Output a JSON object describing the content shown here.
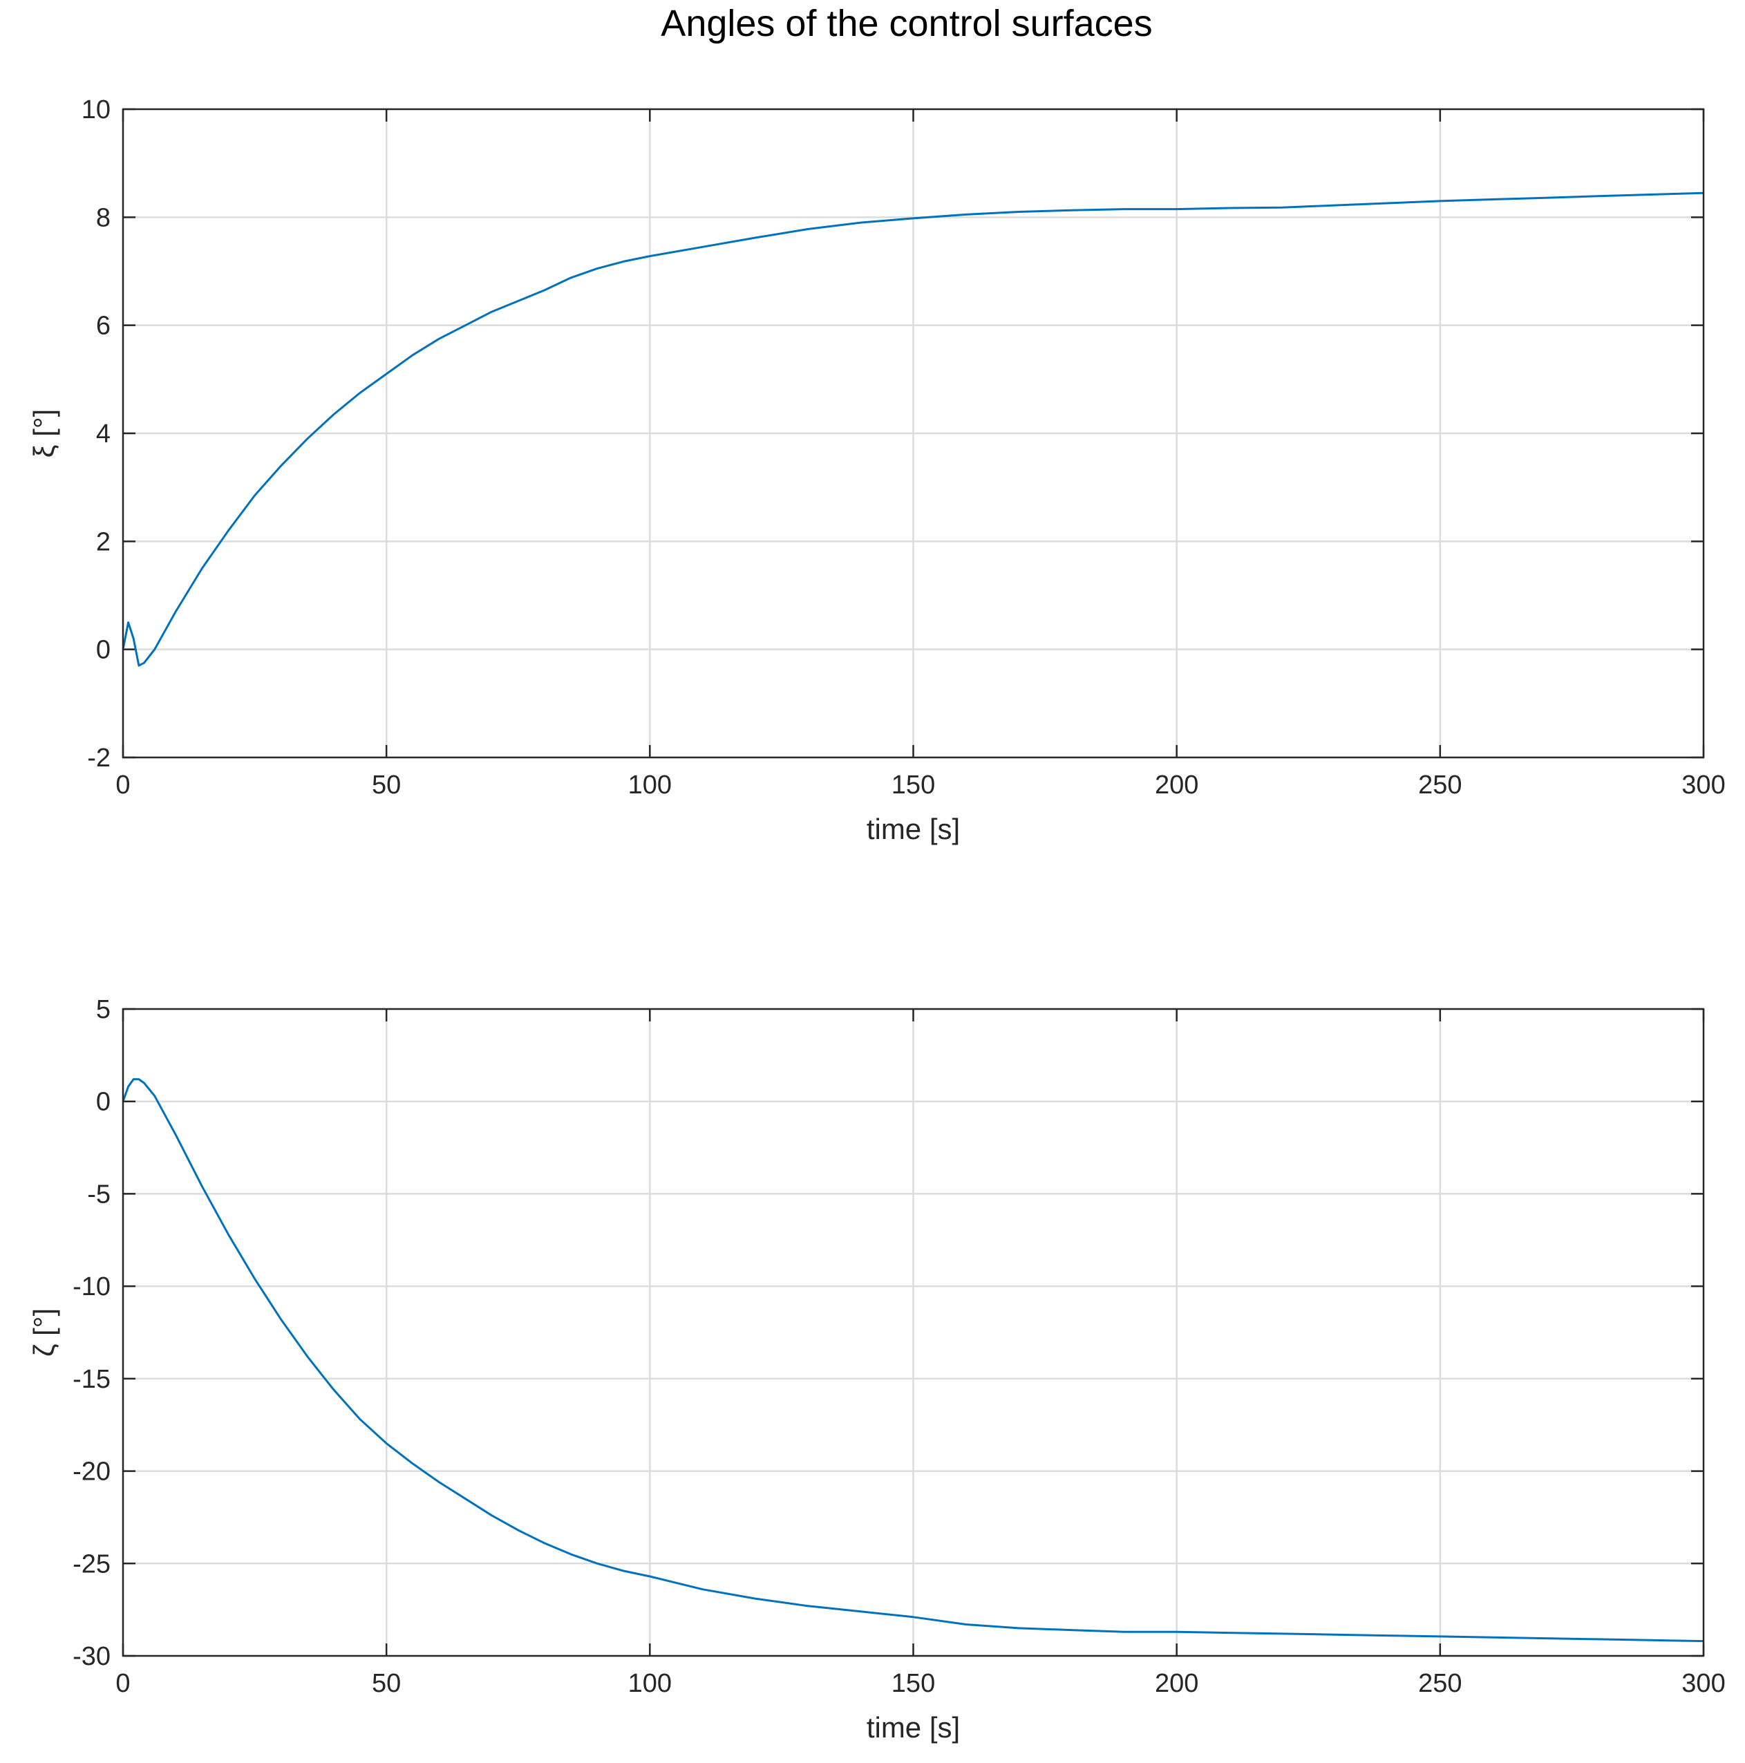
{
  "figure": {
    "title": "Angles of the control surfaces"
  },
  "colors": {
    "series": "#0072BD",
    "grid": "#dcdcdc",
    "axis": "#262626"
  },
  "chart_data": [
    {
      "type": "line",
      "xlabel": "time [s]",
      "ylabel": "ξ [°]",
      "xlim": [
        0,
        300
      ],
      "ylim": [
        -2,
        10
      ],
      "xticks": [
        0,
        50,
        100,
        150,
        200,
        250,
        300
      ],
      "yticks": [
        -2,
        0,
        2,
        4,
        6,
        8,
        10
      ],
      "grid": true,
      "series": [
        {
          "x": [
            0,
            1,
            2,
            3,
            4,
            6,
            10,
            15,
            20,
            25,
            30,
            35,
            40,
            45,
            50,
            55,
            60,
            65,
            70,
            75,
            80,
            85,
            90,
            95,
            100,
            110,
            120,
            130,
            140,
            150,
            160,
            170,
            180,
            190,
            200,
            210,
            220,
            230,
            240,
            250,
            260,
            270,
            280,
            290,
            300
          ],
          "y": [
            0,
            0.5,
            0.2,
            -0.3,
            -0.25,
            0,
            0.7,
            1.5,
            2.2,
            2.85,
            3.4,
            3.9,
            4.35,
            4.75,
            5.1,
            5.45,
            5.75,
            6.0,
            6.25,
            6.45,
            6.65,
            6.88,
            7.05,
            7.18,
            7.28,
            7.45,
            7.62,
            7.78,
            7.9,
            7.98,
            8.05,
            8.1,
            8.13,
            8.15,
            8.15,
            8.17,
            8.18,
            8.22,
            8.26,
            8.3,
            8.33,
            8.36,
            8.39,
            8.42,
            8.45
          ]
        }
      ]
    },
    {
      "type": "line",
      "xlabel": "time [s]",
      "ylabel": "ζ [°]",
      "xlim": [
        0,
        300
      ],
      "ylim": [
        -30,
        5
      ],
      "xticks": [
        0,
        50,
        100,
        150,
        200,
        250,
        300
      ],
      "yticks": [
        -30,
        -25,
        -20,
        -15,
        -10,
        -5,
        0,
        5
      ],
      "grid": true,
      "series": [
        {
          "x": [
            0,
            1,
            2,
            3,
            4,
            6,
            10,
            15,
            20,
            25,
            30,
            35,
            40,
            45,
            50,
            55,
            60,
            65,
            70,
            75,
            80,
            85,
            90,
            95,
            100,
            110,
            120,
            130,
            140,
            150,
            160,
            170,
            180,
            190,
            200,
            210,
            220,
            230,
            240,
            250,
            260,
            270,
            280,
            290,
            300
          ],
          "y": [
            0,
            0.8,
            1.2,
            1.2,
            1.0,
            0.3,
            -1.8,
            -4.6,
            -7.2,
            -9.6,
            -11.8,
            -13.8,
            -15.6,
            -17.2,
            -18.5,
            -19.6,
            -20.6,
            -21.5,
            -22.4,
            -23.2,
            -23.9,
            -24.5,
            -25.0,
            -25.4,
            -25.7,
            -26.4,
            -26.9,
            -27.3,
            -27.6,
            -27.9,
            -28.3,
            -28.5,
            -28.6,
            -28.7,
            -28.7,
            -28.75,
            -28.8,
            -28.85,
            -28.9,
            -28.95,
            -29.0,
            -29.05,
            -29.1,
            -29.15,
            -29.2
          ]
        }
      ]
    }
  ]
}
